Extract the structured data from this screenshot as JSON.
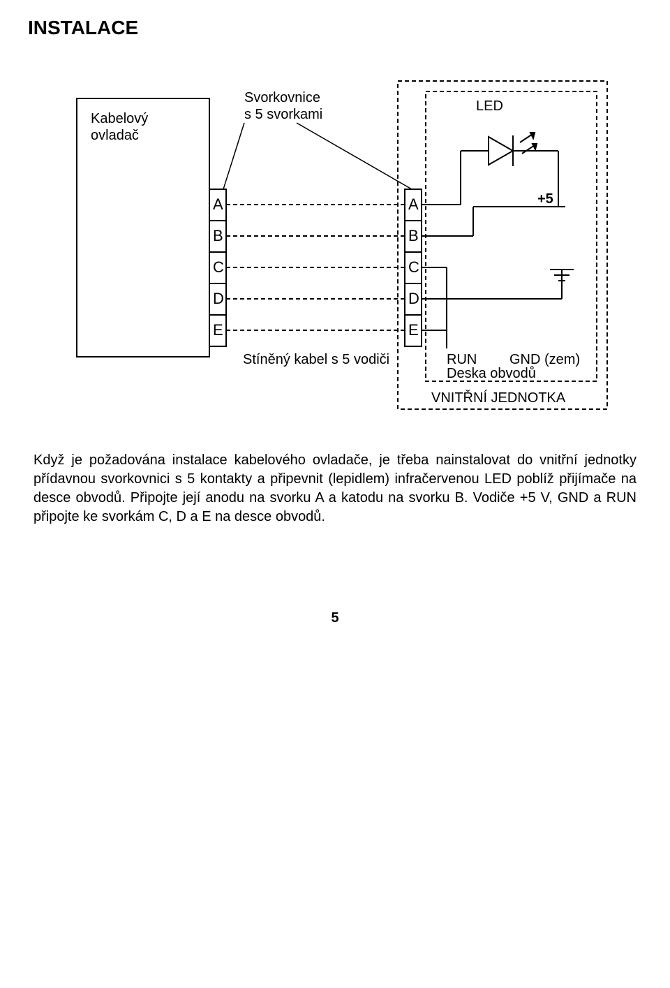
{
  "page": {
    "title": "INSTALACE",
    "number": "5"
  },
  "diagram": {
    "left_block_label": "Kabelový\novladač",
    "top_label_svorkovnice": "Svorkovnice\ns 5 svorkami",
    "top_label_led": "LED",
    "cable_label": "Stíněný kabel s 5 vodiči",
    "run_label": "RUN",
    "gnd_label": "GND (zem)",
    "deska_label": "Deska obvodů",
    "unit_label": "VNITŘNÍ JEDNOTKA",
    "plus5_label": "+5",
    "pins": [
      "A",
      "B",
      "C",
      "D",
      "E"
    ],
    "font_label": 20,
    "font_pins": 22,
    "stroke": "#000000",
    "stroke_w": 2,
    "dash": "6,4"
  },
  "paragraph": "Když je požadována instalace kabelového ovladače, je třeba nainstalovat do vnitřní jednotky přídavnou svorkovnici s 5 kontakty a připevnit (lepidlem) infračervenou LED poblíž přijímače na desce obvodů. Připojte její anodu na svorku A a katodu na svorku B. Vodiče +5 V, GND a RUN připojte ke svorkám C, D a E na desce obvodů."
}
